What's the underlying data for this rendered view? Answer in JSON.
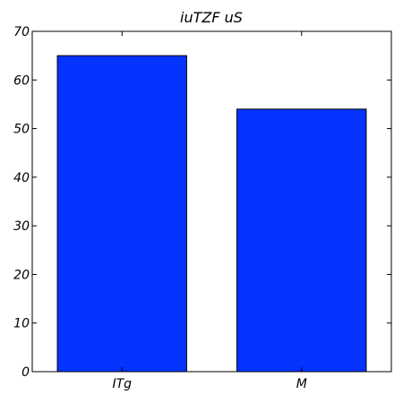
{
  "chart_data": {
    "type": "bar",
    "title": "iuTZF uS",
    "categories": [
      "ITg",
      "M"
    ],
    "values": [
      65,
      54
    ],
    "ylim": [
      0,
      70
    ],
    "yticks": [
      0,
      10,
      20,
      30,
      40,
      50,
      60,
      70
    ],
    "xlabel": "",
    "ylabel": "",
    "grid": false,
    "colors": {
      "bar": "#0433ff",
      "edge": "#000000"
    }
  }
}
